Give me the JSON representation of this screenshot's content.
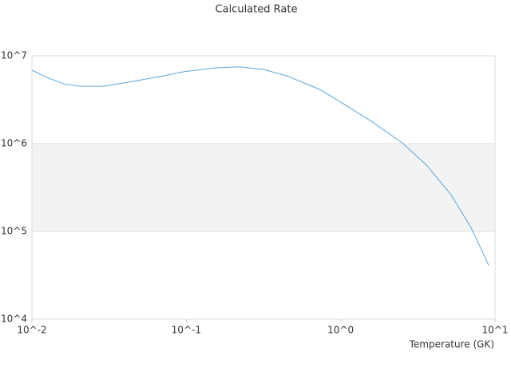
{
  "chart_data": {
    "type": "line",
    "title": "Calculated Rate",
    "x_label": "Temperature (GK)",
    "xscale": "log",
    "yscale": "log",
    "xlim": [
      0.01,
      10
    ],
    "ylim": [
      10000,
      10000000
    ],
    "xticks": [
      {
        "value": 0.01,
        "label": "10^-2"
      },
      {
        "value": 0.1,
        "label": "10^-1"
      },
      {
        "value": 1,
        "label": "10^0"
      },
      {
        "value": 10,
        "label": "10^1"
      }
    ],
    "yticks": [
      {
        "value": 10000,
        "label": "10^4"
      },
      {
        "value": 100000,
        "label": "10^5"
      },
      {
        "value": 1000000,
        "label": "10^6"
      },
      {
        "value": 10000000,
        "label": "10^7"
      }
    ],
    "grid": true,
    "series": [
      {
        "color": "#5aa6e0",
        "x": [
          0.01,
          0.0127,
          0.0161,
          0.0204,
          0.0292,
          0.0417,
          0.0672,
          0.0962,
          0.155,
          0.22,
          0.316,
          0.45,
          0.73,
          1.04,
          1.58,
          2.54,
          3.63,
          5.2,
          7.0,
          9.1
        ],
        "values": [
          6860000,
          5600000,
          4800000,
          4500000,
          4500000,
          5000000,
          5800000,
          6600000,
          7300000,
          7500000,
          7000000,
          5900000,
          4150000,
          2850000,
          1800000,
          1000000,
          560000,
          260000,
          110000,
          41000
        ]
      }
    ]
  }
}
